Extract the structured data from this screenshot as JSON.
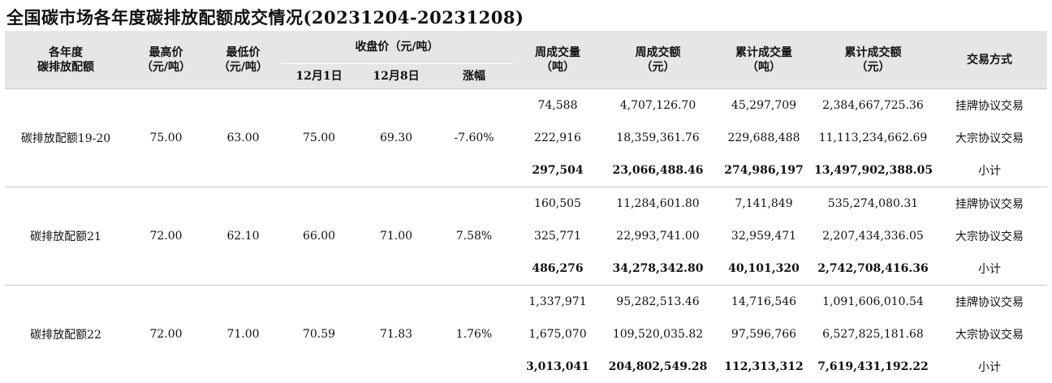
{
  "title": "全国碳市场各年度碳排放配额成交情况(20231204-20231208)",
  "headers": {
    "allowance": [
      "各年度",
      "碳排放配额"
    ],
    "high": [
      "最高价",
      "（元/吨）"
    ],
    "low": [
      "最低价",
      "（元/吨）"
    ],
    "close": "收盘价（元/吨）",
    "close_d1": "12月1日",
    "close_d2": "12月8日",
    "change": "涨幅",
    "week_vol": [
      "周成交量",
      "（吨）"
    ],
    "week_amt": [
      "周成交额",
      "（元）"
    ],
    "cum_vol": [
      "累计成交量",
      "（吨）"
    ],
    "cum_amt": [
      "累计成交额",
      "（元）"
    ],
    "mode": "交易方式"
  },
  "groups": [
    {
      "name": "碳排放配额19-20",
      "high": "75.00",
      "low": "63.00",
      "close_d1": "75.00",
      "close_d2": "69.30",
      "change": "-7.60%",
      "rows": [
        {
          "week_vol": "74,588",
          "week_amt": "4,707,126.70",
          "cum_vol": "45,297,709",
          "cum_amt": "2,384,667,725.36",
          "mode": "挂牌协议交易"
        },
        {
          "week_vol": "222,916",
          "week_amt": "18,359,361.76",
          "cum_vol": "229,688,488",
          "cum_amt": "11,113,234,662.69",
          "mode": "大宗协议交易"
        },
        {
          "week_vol": "297,504",
          "week_amt": "23,066,488.46",
          "cum_vol": "274,986,197",
          "cum_amt": "13,497,902,388.05",
          "mode": "小计"
        }
      ]
    },
    {
      "name": "碳排放配额21",
      "high": "72.00",
      "low": "62.10",
      "close_d1": "66.00",
      "close_d2": "71.00",
      "change": "7.58%",
      "rows": [
        {
          "week_vol": "160,505",
          "week_amt": "11,284,601.80",
          "cum_vol": "7,141,849",
          "cum_amt": "535,274,080.31",
          "mode": "挂牌协议交易"
        },
        {
          "week_vol": "325,771",
          "week_amt": "22,993,741.00",
          "cum_vol": "32,959,471",
          "cum_amt": "2,207,434,336.05",
          "mode": "大宗协议交易"
        },
        {
          "week_vol": "486,276",
          "week_amt": "34,278,342.80",
          "cum_vol": "40,101,320",
          "cum_amt": "2,742,708,416.36",
          "mode": "小计"
        }
      ]
    },
    {
      "name": "碳排放配额22",
      "high": "72.00",
      "low": "71.00",
      "close_d1": "70.59",
      "close_d2": "71.83",
      "change": "1.76%",
      "rows": [
        {
          "week_vol": "1,337,971",
          "week_amt": "95,282,513.46",
          "cum_vol": "14,716,546",
          "cum_amt": "1,091,606,010.54",
          "mode": "挂牌协议交易"
        },
        {
          "week_vol": "1,675,070",
          "week_amt": "109,520,035.82",
          "cum_vol": "97,596,766",
          "cum_amt": "6,527,825,181.68",
          "mode": "大宗协议交易"
        },
        {
          "week_vol": "3,013,041",
          "week_amt": "204,802,549.28",
          "cum_vol": "112,313,312",
          "cum_amt": "7,619,431,192.22",
          "mode": "小计"
        }
      ]
    }
  ]
}
